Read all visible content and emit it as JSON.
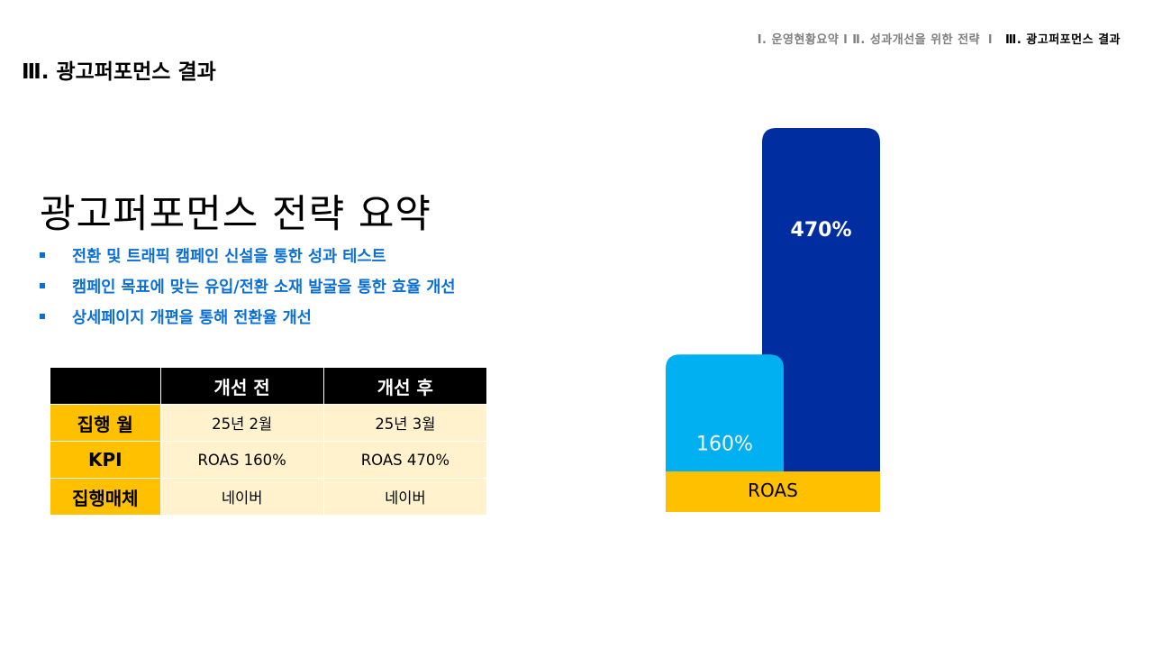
{
  "breadcrumb": {
    "items": [
      {
        "label": "Ⅰ. 운영현황요약 l"
      },
      {
        "label": "Ⅱ. 성과개선을 위한 전략"
      },
      {
        "label": "Ⅲ. 광고퍼포먼스 결과"
      }
    ],
    "separator": "l"
  },
  "page_title": "Ⅲ. 광고퍼포먼스 결과",
  "section_heading": "광고퍼포먼스 전략 요약",
  "bullets": [
    "전환 및 트래픽 캠페인 신설을 통한 성과 테스트",
    "캠페인 목표에 맞는 유입/전환 소재 발굴을 통한 효율 개선",
    "상세페이지 개편을 통해 전환율 개선"
  ],
  "table": {
    "headers": [
      "",
      "개선 전",
      "개선 후"
    ],
    "rows": [
      {
        "label": "집행 월",
        "before": "25년 2월",
        "after": "25년 3월"
      },
      {
        "label": "KPI",
        "before": "ROAS 160%",
        "after": "ROAS 470%"
      },
      {
        "label": "집행매체",
        "before": "네이버",
        "after": "네이버"
      }
    ]
  },
  "colors": {
    "accent_blue": "#0a6fd6",
    "bar_before": "#00b0f0",
    "bar_after": "#002d9f",
    "band_yellow": "#ffc000",
    "cell_light": "#fff2cc"
  },
  "chart_data": {
    "type": "bar",
    "categories": [
      "ROAS"
    ],
    "series": [
      {
        "values": [
          160
        ],
        "labels": [
          "160%"
        ]
      },
      {
        "values": [
          470
        ],
        "labels": [
          "470%"
        ]
      }
    ],
    "ylim": [
      0,
      470
    ],
    "grid": false,
    "legend": "none"
  }
}
